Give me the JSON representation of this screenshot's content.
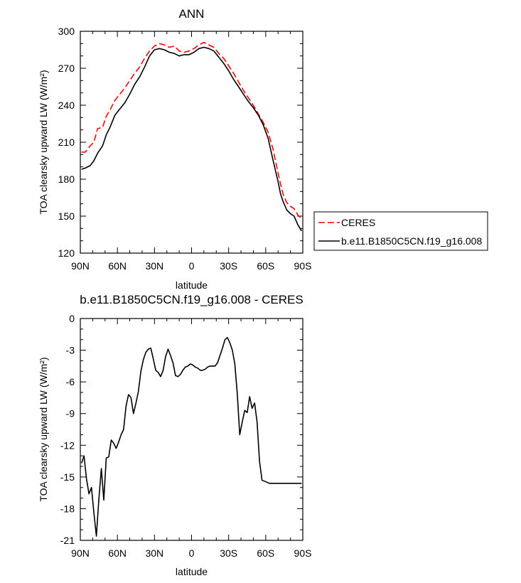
{
  "chart_data": [
    {
      "type": "line",
      "title": "ANN",
      "xlabel": "latitude",
      "ylabel": "TOA clearsky upward LW (W/m²)",
      "xlim": [
        -90,
        90
      ],
      "ylim": [
        120,
        300
      ],
      "x_reversed": false,
      "x_ticks": [
        -90,
        -60,
        -30,
        0,
        30,
        60,
        90
      ],
      "x_tick_labels": [
        "90N",
        "60N",
        "30N",
        "0",
        "30S",
        "60S",
        "90S"
      ],
      "y_ticks": [
        120,
        150,
        180,
        210,
        240,
        270,
        300
      ],
      "y_tick_labels": [
        "120",
        "150",
        "180",
        "210",
        "240",
        "270",
        "300"
      ],
      "legend_position": "right",
      "series": [
        {
          "name": "CERES",
          "color": "#ff0000",
          "style": "dashed",
          "x": [
            -89,
            -86,
            -82,
            -79,
            -76,
            -72,
            -69,
            -66,
            -62,
            -58,
            -54,
            -50,
            -46,
            -42,
            -38,
            -34,
            -30,
            -26,
            -22,
            -18,
            -14,
            -10,
            -6,
            -2,
            2,
            6,
            10,
            14,
            18,
            22,
            26,
            30,
            34,
            38,
            42,
            46,
            50,
            54,
            58,
            62,
            66,
            70,
            72,
            74,
            77,
            80,
            83,
            86,
            89
          ],
          "values": [
            202,
            202,
            207,
            210,
            221,
            222,
            231,
            236,
            244,
            249,
            254,
            260,
            266,
            271,
            278,
            284,
            288,
            290,
            289,
            287,
            288,
            284,
            283,
            284,
            286,
            289,
            291,
            289,
            287,
            282,
            278,
            272,
            266,
            259,
            252,
            246,
            240,
            233,
            226,
            218,
            204,
            185,
            176,
            168,
            161,
            158,
            156,
            151,
            148
          ]
        },
        {
          "name": "b.e11.B1850C5CN.f19_g16.008",
          "color": "#000000",
          "style": "solid",
          "x": [
            -89,
            -86,
            -82,
            -79,
            -76,
            -72,
            -69,
            -66,
            -62,
            -58,
            -54,
            -50,
            -46,
            -42,
            -38,
            -34,
            -30,
            -26,
            -22,
            -18,
            -14,
            -10,
            -6,
            -2,
            2,
            6,
            10,
            14,
            18,
            22,
            26,
            30,
            34,
            38,
            42,
            46,
            50,
            54,
            58,
            62,
            66,
            70,
            72,
            74,
            77,
            80,
            83,
            86,
            89
          ],
          "values": [
            188,
            189,
            191,
            195,
            201,
            207,
            216,
            222,
            232,
            237,
            242,
            249,
            257,
            263,
            271,
            280,
            285,
            286,
            285,
            283,
            282,
            280,
            281,
            281,
            283,
            286,
            287,
            286,
            284,
            279,
            274,
            268,
            261,
            255,
            249,
            243,
            238,
            232,
            224,
            213,
            195,
            178,
            168,
            162,
            155,
            152,
            150,
            143,
            138
          ]
        }
      ]
    },
    {
      "type": "line",
      "title": "b.e11.B1850C5CN.f19_g16.008 - CERES",
      "xlabel": "latitude",
      "ylabel": "TOA clearsky upward LW (W/m²)",
      "xlim": [
        -90,
        90
      ],
      "ylim": [
        -21,
        0
      ],
      "x_ticks": [
        -90,
        -60,
        -30,
        0,
        30,
        60,
        90
      ],
      "x_tick_labels": [
        "90N",
        "60N",
        "30N",
        "0",
        "30S",
        "60S",
        "90S"
      ],
      "y_ticks": [
        -21,
        -18,
        -15,
        -12,
        -9,
        -6,
        -3,
        0
      ],
      "y_tick_labels": [
        "-21",
        "-18",
        "-15",
        "-12",
        "-9",
        "-6",
        "-3",
        "0"
      ],
      "series": [
        {
          "color": "#000000",
          "style": "solid",
          "x": [
            -89,
            -87,
            -85,
            -83,
            -81,
            -79,
            -77,
            -75,
            -73,
            -71,
            -69,
            -67,
            -65,
            -63,
            -61,
            -59,
            -57,
            -55,
            -53,
            -51,
            -49,
            -47,
            -45,
            -43,
            -41,
            -39,
            -37,
            -35,
            -33,
            -31,
            -29,
            -27,
            -25,
            -23,
            -21,
            -19,
            -17,
            -15,
            -13,
            -11,
            -9,
            -7,
            -5,
            -3,
            -1,
            1,
            3,
            5,
            7,
            9,
            11,
            13,
            15,
            17,
            19,
            21,
            23,
            25,
            27,
            29,
            31,
            33,
            35,
            37,
            39,
            41,
            43,
            45,
            47,
            49,
            51,
            53,
            55,
            57,
            59,
            61,
            63,
            65,
            67,
            69,
            71,
            73,
            75,
            77,
            79,
            81,
            83,
            85,
            87,
            89
          ],
          "values": [
            -13.7,
            -13.0,
            -15.2,
            -16.6,
            -16.0,
            -18.4,
            -20.6,
            -17.1,
            -14.2,
            -17.2,
            -13.2,
            -13.1,
            -11.5,
            -11.8,
            -12.3,
            -11.7,
            -11.0,
            -10.5,
            -8.3,
            -7.2,
            -7.5,
            -9.0,
            -8.0,
            -6.9,
            -5.0,
            -3.9,
            -3.2,
            -2.9,
            -2.8,
            -3.8,
            -4.9,
            -5.1,
            -5.5,
            -4.9,
            -3.6,
            -2.9,
            -3.5,
            -4.2,
            -5.4,
            -5.5,
            -5.3,
            -4.9,
            -4.6,
            -4.5,
            -4.3,
            -4.4,
            -4.6,
            -4.7,
            -4.9,
            -4.9,
            -4.8,
            -4.6,
            -4.5,
            -4.5,
            -4.5,
            -4.2,
            -3.5,
            -2.8,
            -2.0,
            -1.8,
            -2.3,
            -3.0,
            -4.3,
            -7.1,
            -11.0,
            -9.8,
            -8.7,
            -8.9,
            -7.4,
            -8.5,
            -8.0,
            -9.8,
            -13.5,
            -15.3,
            -15.4,
            -15.5,
            -15.6,
            -15.6,
            -15.6,
            -15.6,
            -15.6,
            -15.6,
            -15.6,
            -15.6,
            -15.6,
            -15.6,
            -15.6,
            -15.6,
            -15.6,
            -15.6
          ]
        }
      ]
    }
  ]
}
